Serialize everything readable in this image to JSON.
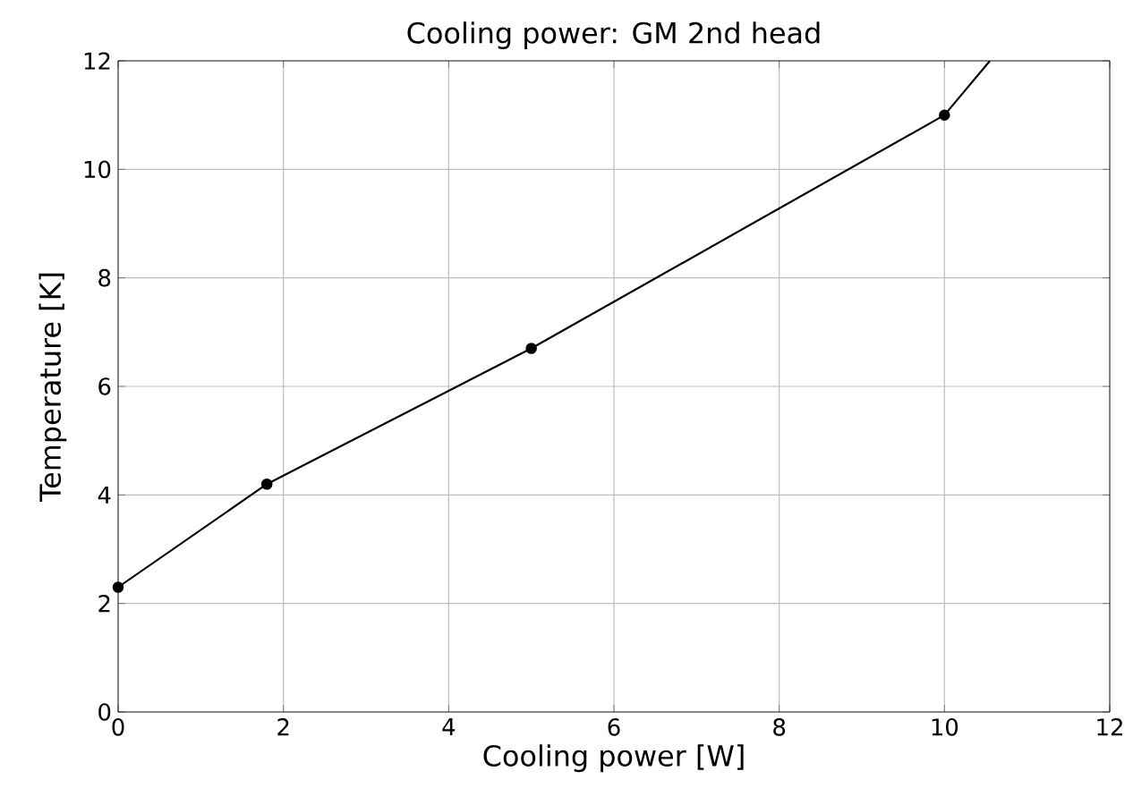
{
  "chart_data": {
    "type": "line",
    "title": "Cooling power: GM 2nd head",
    "xlabel": "Cooling power [W]",
    "ylabel": "Temperature [K]",
    "series": [
      {
        "color": "#000000",
        "x": [
          0,
          1.8,
          5,
          10
        ],
        "values": [
          2.3,
          4.2,
          6.7,
          11
        ],
        "marker": "circle"
      },
      {
        "color": "#000000",
        "x": [
          10,
          10.55
        ],
        "values": [
          11,
          12
        ],
        "marker": "none"
      }
    ],
    "xlim": [
      0,
      12
    ],
    "ylim": [
      0,
      12
    ],
    "xticks": [
      0,
      2,
      4,
      6,
      8,
      10,
      12
    ],
    "yticks": [
      0,
      2,
      4,
      6,
      8,
      10,
      12
    ],
    "grid": true,
    "line_style": "solid"
  }
}
